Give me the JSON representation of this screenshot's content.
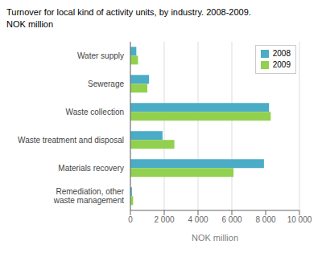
{
  "chart_data": {
    "type": "bar",
    "orientation": "horizontal",
    "title": "Turnover for local kind of activity units, by industry. 2008-2009.",
    "subtitle": "NOK million",
    "categories": [
      "Water supply",
      "Sewerage",
      "Waste collection",
      "Waste treatment and disposal",
      "Materials recovery",
      "Remediation, other\nwaste management"
    ],
    "series": [
      {
        "name": "2008",
        "color": "#4bacc6",
        "values": [
          350,
          1100,
          8200,
          1900,
          7900,
          90
        ]
      },
      {
        "name": "2009",
        "color": "#92d050",
        "values": [
          450,
          1000,
          8300,
          2600,
          6100,
          160
        ]
      }
    ],
    "xlabel": "NOK million",
    "xlim": [
      0,
      10000
    ],
    "xticks": [
      0,
      {
        "value": 2000,
        "label": "2 000"
      },
      {
        "value": 4000,
        "label": "4 000"
      },
      {
        "value": 6000,
        "label": "6 000"
      },
      {
        "value": 8000,
        "label": "8 000"
      },
      {
        "value": 10000,
        "label": "10 000"
      }
    ],
    "grid": true,
    "legend": "upper right"
  }
}
